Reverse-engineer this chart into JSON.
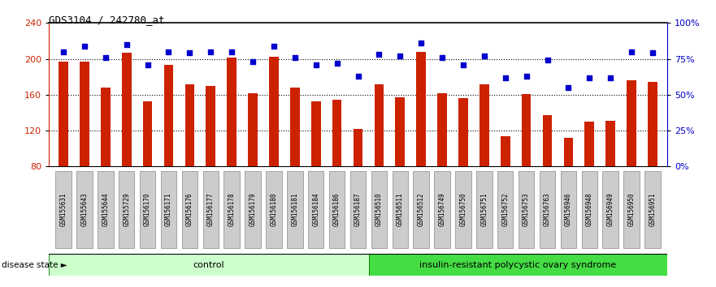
{
  "title": "GDS3104 / 242780_at",
  "samples": [
    "GSM155631",
    "GSM155643",
    "GSM155644",
    "GSM155729",
    "GSM156170",
    "GSM156171",
    "GSM156176",
    "GSM156177",
    "GSM156178",
    "GSM156179",
    "GSM156180",
    "GSM156181",
    "GSM156184",
    "GSM156186",
    "GSM156187",
    "GSM156510",
    "GSM156511",
    "GSM156512",
    "GSM156749",
    "GSM156750",
    "GSM156751",
    "GSM156752",
    "GSM156753",
    "GSM156763",
    "GSM156946",
    "GSM156948",
    "GSM156949",
    "GSM156950",
    "GSM156951"
  ],
  "counts": [
    197,
    197,
    168,
    207,
    153,
    193,
    172,
    170,
    201,
    162,
    202,
    168,
    153,
    154,
    122,
    172,
    157,
    208,
    162,
    156,
    172,
    114,
    161,
    137,
    112,
    130,
    131,
    176,
    174
  ],
  "percentile_ranks": [
    80,
    84,
    76,
    85,
    71,
    80,
    79,
    80,
    80,
    73,
    84,
    76,
    71,
    72,
    63,
    78,
    77,
    86,
    76,
    71,
    77,
    62,
    63,
    74,
    55,
    62,
    62,
    80,
    79
  ],
  "n_control": 15,
  "n_irpcos": 14,
  "group1_label": "control",
  "group2_label": "insulin-resistant polycystic ovary syndrome",
  "bar_color": "#cc2200",
  "dot_color": "#0000cc",
  "ylim_left": [
    80,
    240
  ],
  "ylim_right": [
    0,
    100
  ],
  "yticks_left": [
    80,
    120,
    160,
    200,
    240
  ],
  "yticks_right": [
    0,
    25,
    50,
    75,
    100
  ],
  "grid_values": [
    120,
    160,
    200
  ],
  "ctrl_color": "#ccffcc",
  "irpcos_color": "#44dd44",
  "group_border_color": "#007700",
  "tick_bg_color": "#cccccc",
  "tick_border_color": "#888888"
}
